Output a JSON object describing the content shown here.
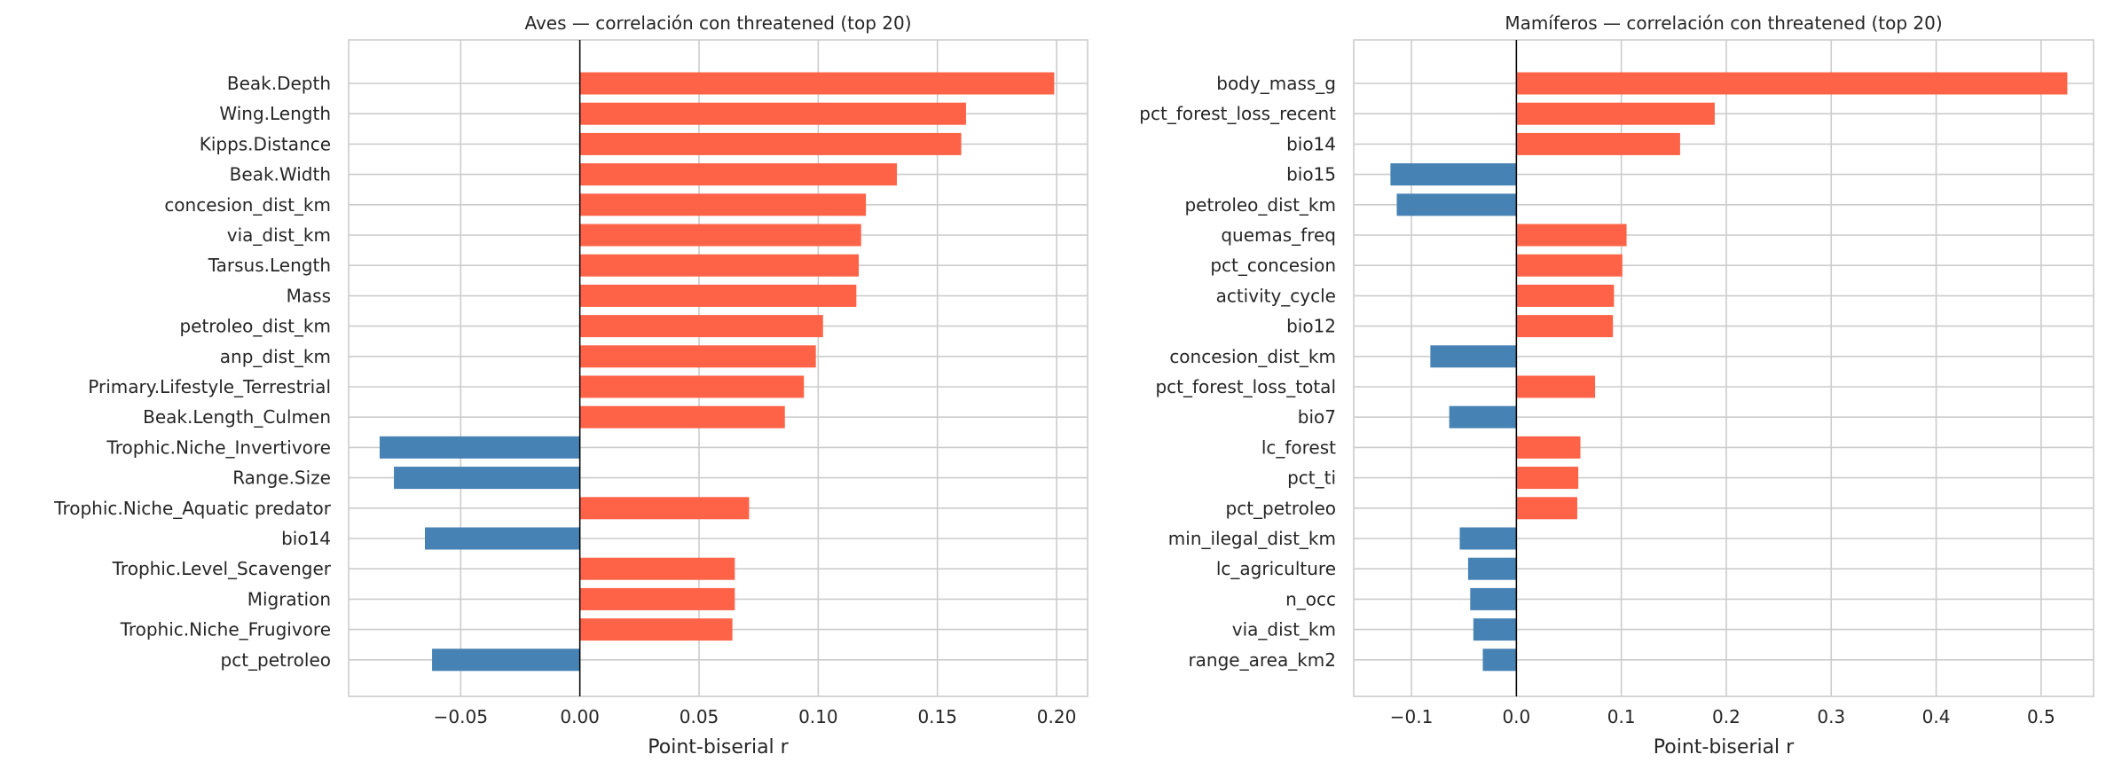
{
  "colors": {
    "positive": "#ff6347",
    "negative": "#4682b4"
  },
  "chart_data": [
    {
      "type": "bar",
      "orientation": "horizontal",
      "title": "Aves — correlación con threatened (top 20)",
      "xlabel": "Point-biserial r",
      "xlim": [
        -0.097,
        0.213
      ],
      "xticks": [
        -0.05,
        0.0,
        0.05,
        0.1,
        0.15,
        0.2
      ],
      "xtick_labels": [
        "−0.05",
        "0.00",
        "0.05",
        "0.10",
        "0.15",
        "0.20"
      ],
      "grid": true,
      "categories": [
        "Beak.Depth",
        "Wing.Length",
        "Kipps.Distance",
        "Beak.Width",
        "concesion_dist_km",
        "via_dist_km",
        "Tarsus.Length",
        "Mass",
        "petroleo_dist_km",
        "anp_dist_km",
        "Primary.Lifestyle_Terrestrial",
        "Beak.Length_Culmen",
        "Trophic.Niche_Invertivore",
        "Range.Size",
        "Trophic.Niche_Aquatic predator",
        "bio14",
        "Trophic.Level_Scavenger",
        "Migration",
        "Trophic.Niche_Frugivore",
        "pct_petroleo"
      ],
      "values": [
        0.199,
        0.162,
        0.16,
        0.133,
        0.12,
        0.118,
        0.117,
        0.116,
        0.102,
        0.099,
        0.094,
        0.086,
        -0.084,
        -0.078,
        0.071,
        -0.065,
        0.065,
        0.065,
        0.064,
        -0.062
      ]
    },
    {
      "type": "bar",
      "orientation": "horizontal",
      "title": "Mamíferos — correlación con threatened (top 20)",
      "xlabel": "Point-biserial r",
      "xlim": [
        -0.155,
        0.55
      ],
      "xticks": [
        -0.1,
        0.0,
        0.1,
        0.2,
        0.3,
        0.4,
        0.5
      ],
      "xtick_labels": [
        "−0.1",
        "0.0",
        "0.1",
        "0.2",
        "0.3",
        "0.4",
        "0.5"
      ],
      "grid": true,
      "categories": [
        "body_mass_g",
        "pct_forest_loss_recent",
        "bio14",
        "bio15",
        "petroleo_dist_km",
        "quemas_freq",
        "pct_concesion",
        "activity_cycle",
        "bio12",
        "concesion_dist_km",
        "pct_forest_loss_total",
        "bio7",
        "lc_forest",
        "pct_ti",
        "pct_petroleo",
        "min_ilegal_dist_km",
        "lc_agriculture",
        "n_occ",
        "via_dist_km",
        "range_area_km2"
      ],
      "values": [
        0.525,
        0.189,
        0.156,
        -0.12,
        -0.114,
        0.105,
        0.101,
        0.093,
        0.092,
        -0.082,
        0.075,
        -0.064,
        0.061,
        0.059,
        0.058,
        -0.054,
        -0.046,
        -0.044,
        -0.041,
        -0.032
      ]
    }
  ]
}
